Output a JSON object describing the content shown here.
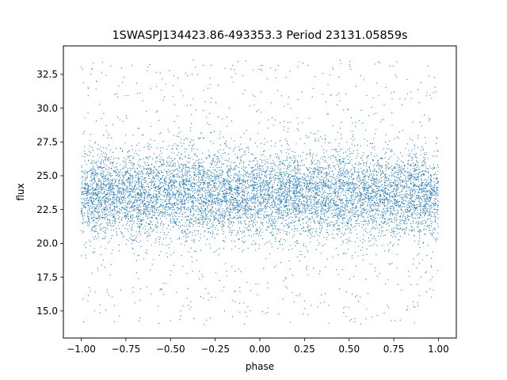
{
  "chart_data": {
    "type": "scatter",
    "title": "1SWASPJ134423.86-493353.3 Period 23131.05859s",
    "xlabel": "phase",
    "ylabel": "flux",
    "xlim": [
      -1.1,
      1.1
    ],
    "ylim": [
      13.0,
      34.6
    ],
    "x_ticks": [
      {
        "value": -1.0,
        "label": "−1.00"
      },
      {
        "value": -0.75,
        "label": "−0.75"
      },
      {
        "value": -0.5,
        "label": "−0.50"
      },
      {
        "value": -0.25,
        "label": "−0.25"
      },
      {
        "value": 0.0,
        "label": "0.00"
      },
      {
        "value": 0.25,
        "label": "0.25"
      },
      {
        "value": 0.5,
        "label": "0.50"
      },
      {
        "value": 0.75,
        "label": "0.75"
      },
      {
        "value": 1.0,
        "label": "1.00"
      }
    ],
    "y_ticks": [
      {
        "value": 15.0,
        "label": "15.0"
      },
      {
        "value": 17.5,
        "label": "17.5"
      },
      {
        "value": 20.0,
        "label": "20.0"
      },
      {
        "value": 22.5,
        "label": "22.5"
      },
      {
        "value": 25.0,
        "label": "25.0"
      },
      {
        "value": 27.5,
        "label": "27.5"
      },
      {
        "value": 30.0,
        "label": "30.0"
      },
      {
        "value": 32.5,
        "label": "32.5"
      }
    ],
    "grid": false,
    "marker_color": "#1f77b4",
    "series": [
      {
        "x_range": [
          -1.0,
          1.0
        ],
        "y_center": 23.6,
        "y_core_half_width": 2.6,
        "y_min": 14.0,
        "y_max": 33.6,
        "distribution": "dense band, uniform in phase, mirrored about phase 0"
      }
    ]
  }
}
